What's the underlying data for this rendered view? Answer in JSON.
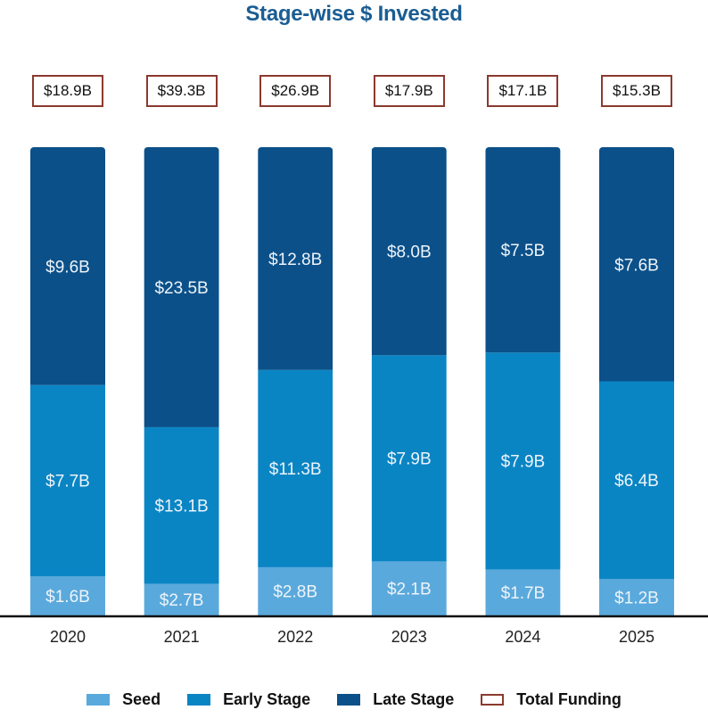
{
  "title": "Stage-wise $ Invested",
  "colors": {
    "seed": "#5aa9dc",
    "early": "#0a85c4",
    "late": "#0b5089",
    "total_border": "#8b3a2e",
    "title": "#1a5d93"
  },
  "legend": [
    {
      "key": "seed",
      "label": "Seed"
    },
    {
      "key": "early",
      "label": "Early Stage"
    },
    {
      "key": "late",
      "label": "Late Stage"
    },
    {
      "key": "total",
      "label": "Total Funding"
    }
  ],
  "chart_data": {
    "type": "bar",
    "stacked": "100-percent",
    "title": "Stage-wise $ Invested",
    "xlabel": "",
    "ylabel": "",
    "unit": "$B",
    "categories": [
      "2020",
      "2021",
      "2022",
      "2023",
      "2024",
      "2025"
    ],
    "series": [
      {
        "name": "Seed",
        "key": "seed",
        "values": [
          1.6,
          2.7,
          2.8,
          2.1,
          1.7,
          1.2
        ],
        "labels": [
          "$1.6B",
          "$2.7B",
          "$2.8B",
          "$2.1B",
          "$1.7B",
          "$1.2B"
        ]
      },
      {
        "name": "Early Stage",
        "key": "early",
        "values": [
          7.7,
          13.1,
          11.3,
          7.9,
          7.9,
          6.4
        ],
        "labels": [
          "$7.7B",
          "$13.1B",
          "$11.3B",
          "$7.9B",
          "$7.9B",
          "$6.4B"
        ]
      },
      {
        "name": "Late Stage",
        "key": "late",
        "values": [
          9.6,
          23.5,
          12.8,
          8.0,
          7.5,
          7.6
        ],
        "labels": [
          "$9.6B",
          "$23.5B",
          "$12.8B",
          "$8.0B",
          "$7.5B",
          "$7.6B"
        ]
      }
    ],
    "totals": {
      "name": "Total Funding",
      "values": [
        18.9,
        39.3,
        26.9,
        17.9,
        17.1,
        15.3
      ],
      "labels": [
        "$18.9B",
        "$39.3B",
        "$26.9B",
        "$17.9B",
        "$17.1B",
        "$15.3B"
      ]
    },
    "grid": false,
    "legend_position": "bottom"
  }
}
